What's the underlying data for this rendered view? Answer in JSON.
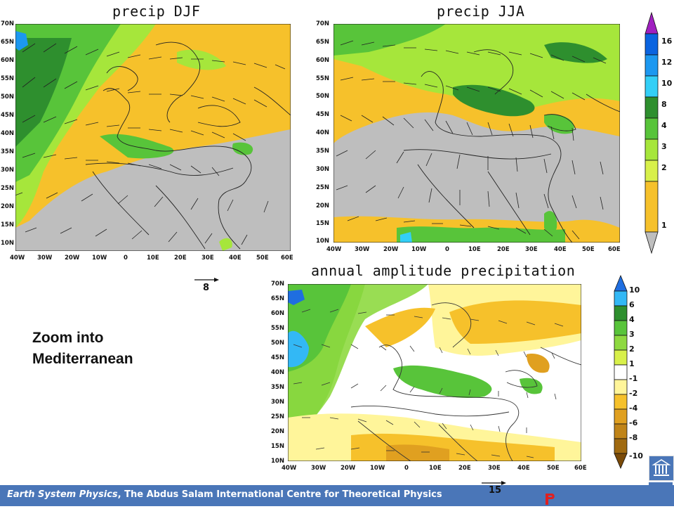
{
  "panels": {
    "djf": {
      "title": "precip DJF"
    },
    "jja": {
      "title": "precip JJA"
    },
    "amp": {
      "title": "annual amplitude precipitation"
    }
  },
  "lat_labels": [
    "70N",
    "65N",
    "60N",
    "55N",
    "50N",
    "45N",
    "40N",
    "35N",
    "30N",
    "25N",
    "20N",
    "15N",
    "10N"
  ],
  "lon_labels": [
    "40W",
    "30W",
    "20W",
    "10W",
    "0",
    "10E",
    "20E",
    "30E",
    "40E",
    "50E",
    "60E"
  ],
  "reference_vectors": {
    "top": "8",
    "bottom": "15"
  },
  "precip_scale": {
    "labels": [
      "16",
      "12",
      "10",
      "8",
      "4",
      "3",
      "2",
      "1"
    ],
    "colors": [
      "#a020c0",
      "#0a64e0",
      "#1c98f0",
      "#33cff7",
      "#2e8f2e",
      "#58c43a",
      "#a6e63b",
      "#d8f04a",
      "#f6c12b",
      "#bebebe"
    ]
  },
  "amplitude_scale": {
    "labels": [
      "10",
      "6",
      "4",
      "3",
      "2",
      "1",
      "-1",
      "-2",
      "-4",
      "-6",
      "-8",
      "-10"
    ],
    "colors": [
      "#1f6ee0",
      "#33b8f5",
      "#2e8f2e",
      "#58c43a",
      "#8ed940",
      "#d8f04a",
      "#ffffff",
      "#fff59a",
      "#f6c12b",
      "#e0a020",
      "#c08418",
      "#a06a10",
      "#7a4a08"
    ]
  },
  "side_text": {
    "line1": "Zoom into",
    "line2": "Mediterranean"
  },
  "footer": {
    "italic": "Earth System Physics",
    "rest": ", The Abdus Salam International Centre for Theoretical Physics"
  }
}
